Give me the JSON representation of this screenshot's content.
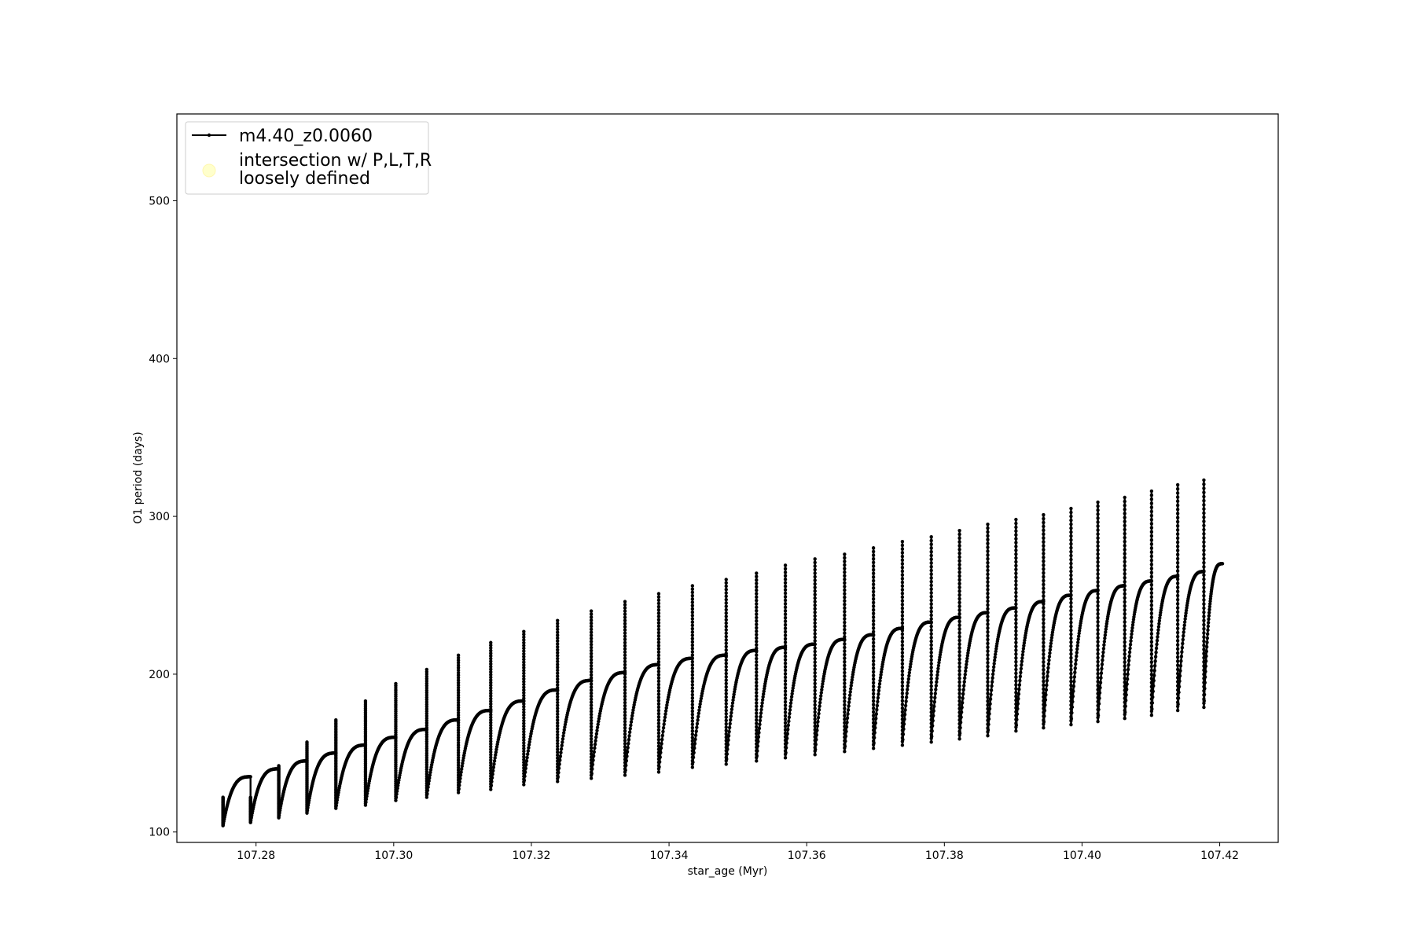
{
  "chart_data": {
    "type": "line",
    "title": "",
    "xlabel": "star_age (Myr)",
    "ylabel": "O1 period (days)",
    "xlim": [
      107.2685,
      107.4285
    ],
    "ylim": [
      93.4,
      555
    ],
    "xticks": [
      107.28,
      107.3,
      107.32,
      107.34,
      107.36,
      107.38,
      107.4,
      107.42
    ],
    "xtick_labels": [
      "107.28",
      "107.30",
      "107.32",
      "107.34",
      "107.36",
      "107.38",
      "107.40",
      "107.42"
    ],
    "yticks": [
      100,
      200,
      300,
      400,
      500
    ],
    "ytick_labels": [
      "100",
      "200",
      "300",
      "400",
      "500"
    ],
    "grid": false,
    "legend": {
      "placement": "top-left",
      "entries": [
        {
          "label": "m4.40_z0.0060",
          "marker": "line-with-dots",
          "color": "#000000"
        },
        {
          "label_lines": [
            "intersection w/ P,L,T,R",
            "loosely defined"
          ],
          "marker": "circle",
          "color": "#ffffcc"
        }
      ]
    },
    "series": [
      {
        "name": "m4.40_z0.0060",
        "color": "#000000",
        "cycles": [
          {
            "start": 107.2752,
            "spike": 122,
            "min": 104,
            "plateau": 135
          },
          {
            "start": 107.2792,
            "spike": 122,
            "min": 106,
            "plateau": 140
          },
          {
            "start": 107.2833,
            "spike": 142,
            "min": 109,
            "plateau": 145
          },
          {
            "start": 107.2874,
            "spike": 157,
            "min": 112,
            "plateau": 150
          },
          {
            "start": 107.2916,
            "spike": 171,
            "min": 115,
            "plateau": 155
          },
          {
            "start": 107.2959,
            "spike": 183,
            "min": 117,
            "plateau": 160
          },
          {
            "start": 107.3003,
            "spike": 194,
            "min": 120,
            "plateau": 165
          },
          {
            "start": 107.3048,
            "spike": 203,
            "min": 122,
            "plateau": 171
          },
          {
            "start": 107.3094,
            "spike": 212,
            "min": 125,
            "plateau": 177
          },
          {
            "start": 107.3141,
            "spike": 220,
            "min": 127,
            "plateau": 183
          },
          {
            "start": 107.3189,
            "spike": 227,
            "min": 130,
            "plateau": 190
          },
          {
            "start": 107.3238,
            "spike": 234,
            "min": 132,
            "plateau": 196
          },
          {
            "start": 107.3287,
            "spike": 240,
            "min": 134,
            "plateau": 201
          },
          {
            "start": 107.3336,
            "spike": 246,
            "min": 136,
            "plateau": 206
          },
          {
            "start": 107.3385,
            "spike": 251,
            "min": 138,
            "plateau": 210
          },
          {
            "start": 107.3434,
            "spike": 256,
            "min": 141,
            "plateau": 212
          },
          {
            "start": 107.3483,
            "spike": 260,
            "min": 143,
            "plateau": 215
          },
          {
            "start": 107.3527,
            "spike": 264,
            "min": 145,
            "plateau": 217
          },
          {
            "start": 107.3569,
            "spike": 269,
            "min": 147,
            "plateau": 219
          },
          {
            "start": 107.3612,
            "spike": 273,
            "min": 149,
            "plateau": 222
          },
          {
            "start": 107.3655,
            "spike": 276,
            "min": 151,
            "plateau": 225
          },
          {
            "start": 107.3697,
            "spike": 280,
            "min": 153,
            "plateau": 229
          },
          {
            "start": 107.3739,
            "spike": 284,
            "min": 155,
            "plateau": 233
          },
          {
            "start": 107.3781,
            "spike": 287,
            "min": 157,
            "plateau": 236
          },
          {
            "start": 107.3822,
            "spike": 291,
            "min": 159,
            "plateau": 239
          },
          {
            "start": 107.3863,
            "spike": 295,
            "min": 161,
            "plateau": 242
          },
          {
            "start": 107.3904,
            "spike": 298,
            "min": 164,
            "plateau": 246
          },
          {
            "start": 107.3944,
            "spike": 301,
            "min": 166,
            "plateau": 250
          },
          {
            "start": 107.3984,
            "spike": 305,
            "min": 168,
            "plateau": 253
          },
          {
            "start": 107.4023,
            "spike": 309,
            "min": 170,
            "plateau": 256
          },
          {
            "start": 107.4062,
            "spike": 312,
            "min": 172,
            "plateau": 259
          },
          {
            "start": 107.4101,
            "spike": 316,
            "min": 174,
            "plateau": 262
          },
          {
            "start": 107.4139,
            "spike": 320,
            "min": 177,
            "plateau": 265
          },
          {
            "start": 107.4177,
            "spike": 323,
            "min": 179,
            "plateau": 268
          }
        ],
        "end": {
          "x": 107.4204,
          "y": 270
        }
      }
    ]
  }
}
